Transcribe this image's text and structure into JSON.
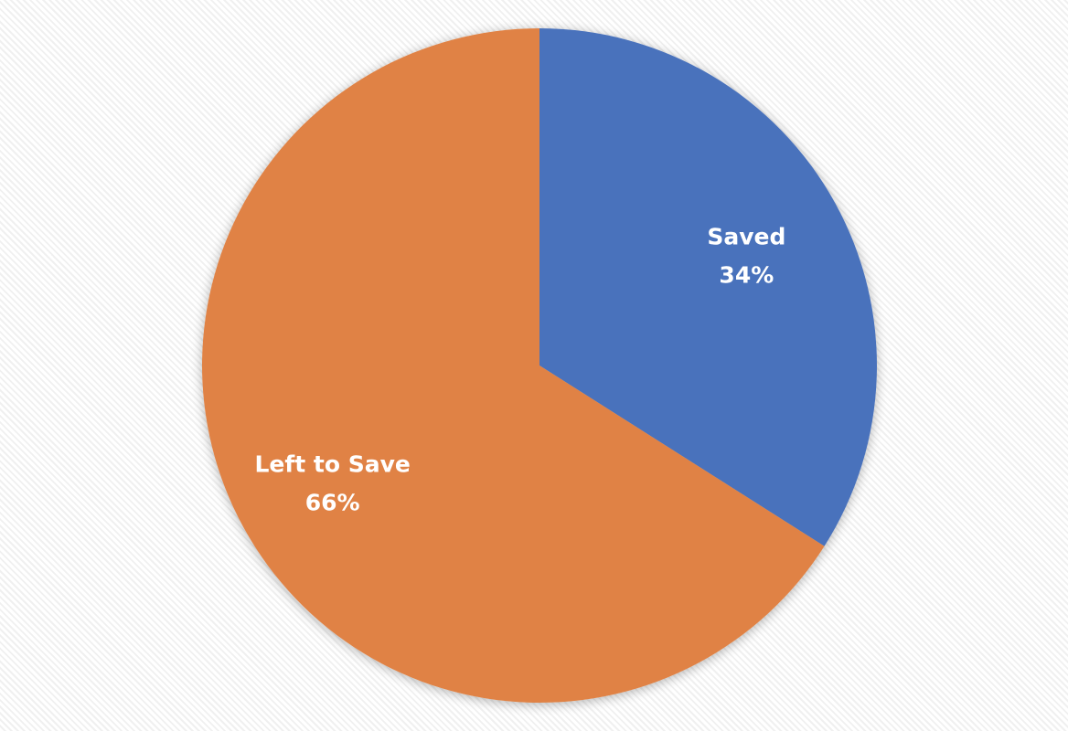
{
  "chart_data": {
    "type": "pie",
    "title": "",
    "categories": [
      "Saved",
      "Left to Save"
    ],
    "values": [
      34,
      66
    ],
    "labels": [
      "34%",
      "66%"
    ],
    "colors": [
      "#4a72bc",
      "#e08244"
    ],
    "start_angle": "12 o'clock",
    "direction": "clockwise",
    "legend": "none"
  }
}
